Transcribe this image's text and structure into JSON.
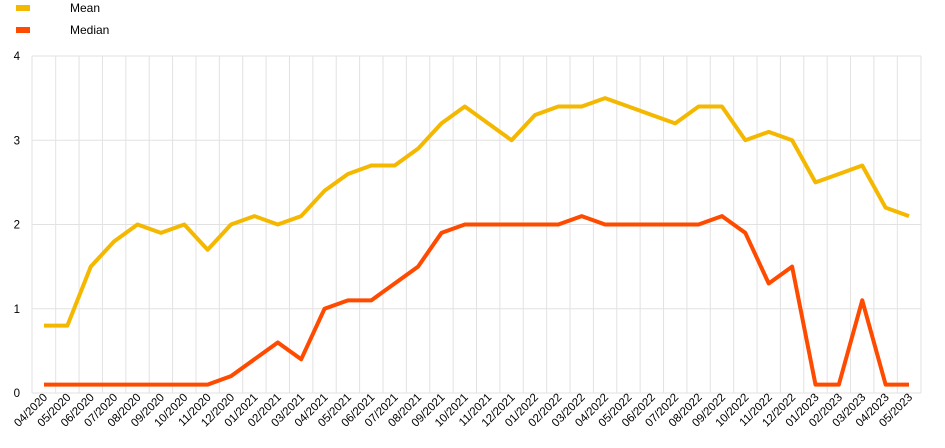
{
  "chart_data": {
    "type": "line",
    "title": "",
    "xlabel": "",
    "ylabel": "",
    "ylim": [
      0,
      4
    ],
    "yticks": [
      "0",
      "1",
      "2",
      "3",
      "4"
    ],
    "grid": true,
    "legend_position": "top-left",
    "categories": [
      "04/2020",
      "05/2020",
      "06/2020",
      "07/2020",
      "08/2020",
      "09/2020",
      "10/2020",
      "11/2020",
      "12/2020",
      "01/2021",
      "02/2021",
      "03/2021",
      "04/2021",
      "05/2021",
      "06/2021",
      "07/2021",
      "08/2021",
      "09/2021",
      "10/2021",
      "11/2021",
      "12/2021",
      "01/2022",
      "02/2022",
      "03/2022",
      "04/2022",
      "05/2022",
      "06/2022",
      "07/2022",
      "08/2022",
      "09/2022",
      "10/2022",
      "11/2022",
      "12/2022",
      "01/2023",
      "02/2023",
      "03/2023",
      "04/2023",
      "05/2023"
    ],
    "series": [
      {
        "name": "Mean",
        "color": "#f5b800",
        "values": [
          0.8,
          0.8,
          1.5,
          1.8,
          2.0,
          1.9,
          2.0,
          1.7,
          2.0,
          2.1,
          2.0,
          2.1,
          2.4,
          2.6,
          2.7,
          2.7,
          2.9,
          3.2,
          3.4,
          3.2,
          3.0,
          3.3,
          3.4,
          3.4,
          3.5,
          3.4,
          3.3,
          3.2,
          3.4,
          3.4,
          3.0,
          3.1,
          3.0,
          2.5,
          2.6,
          2.7,
          2.2,
          2.1
        ]
      },
      {
        "name": "Median",
        "color": "#ff4b00",
        "values": [
          0.1,
          0.1,
          0.1,
          0.1,
          0.1,
          0.1,
          0.1,
          0.1,
          0.2,
          0.4,
          0.6,
          0.4,
          1.0,
          1.1,
          1.1,
          1.3,
          1.5,
          1.9,
          2.0,
          2.0,
          2.0,
          2.0,
          2.0,
          2.1,
          2.0,
          2.0,
          2.0,
          2.0,
          2.0,
          2.1,
          1.9,
          1.3,
          1.5,
          0.1,
          0.1,
          1.1,
          0.1,
          0.1
        ]
      }
    ]
  }
}
